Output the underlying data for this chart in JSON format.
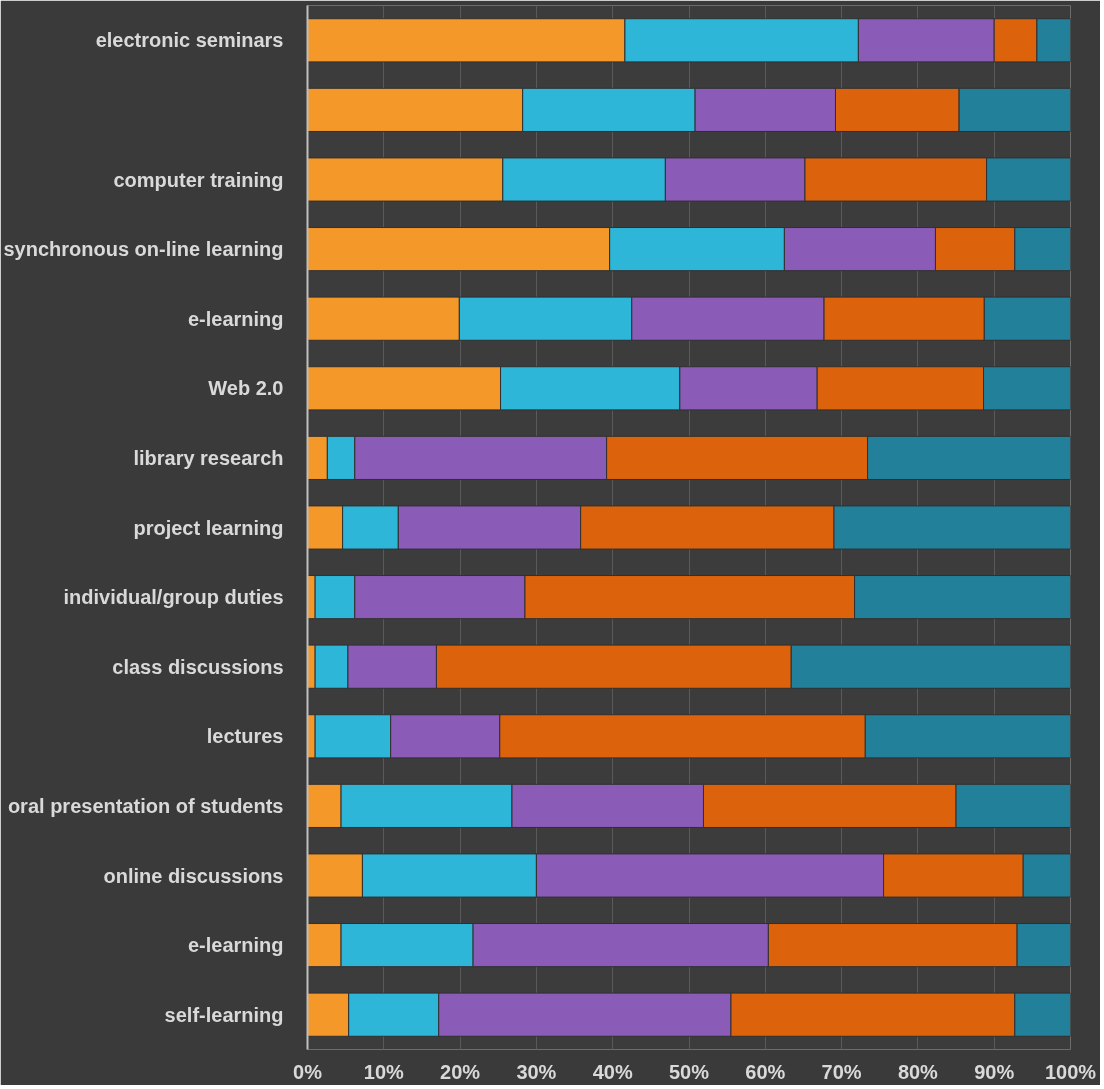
{
  "chart_data": {
    "type": "bar",
    "orientation": "horizontal",
    "stacked": true,
    "categories": [
      "electronic seminars",
      null,
      "computer training",
      "synchronous on-line learning",
      "e-learning",
      "Web 2.0",
      "library research",
      "project learning",
      "individual/group duties",
      "class discussions",
      "lectures",
      "oral presentation of students",
      "online discussions",
      "e-learning",
      "self-learning"
    ],
    "series": [
      {
        "color": "#f5982a",
        "values": [
          41.6,
          28.2,
          25.6,
          39.6,
          19.9,
          25.3,
          2.6,
          4.6,
          1.0,
          1.0,
          1.0,
          4.4,
          7.2,
          4.4,
          5.4
        ]
      },
      {
        "color": "#2db6d8",
        "values": [
          30.6,
          22.6,
          21.3,
          22.9,
          22.6,
          23.5,
          3.6,
          7.3,
          5.2,
          4.3,
          9.9,
          22.4,
          22.8,
          17.3,
          11.8
        ]
      },
      {
        "color": "#8b5bb8",
        "values": [
          17.8,
          18.4,
          18.3,
          19.8,
          25.2,
          18.0,
          33.0,
          23.9,
          22.3,
          11.6,
          14.3,
          25.1,
          45.5,
          38.7,
          38.3
        ]
      },
      {
        "color": "#dc620c",
        "values": [
          5.6,
          16.2,
          23.8,
          10.4,
          21.0,
          21.8,
          34.2,
          33.2,
          43.2,
          46.5,
          47.9,
          33.1,
          18.3,
          32.6,
          37.2
        ]
      },
      {
        "color": "#22809a",
        "values": [
          4.4,
          14.6,
          11.0,
          7.3,
          11.3,
          11.4,
          26.6,
          31.0,
          28.3,
          36.6,
          26.9,
          15.0,
          6.2,
          7.0,
          7.3
        ]
      }
    ],
    "xlim": [
      0,
      100
    ],
    "xticks": [
      {
        "value": 0,
        "label": "0%"
      },
      {
        "value": 10,
        "label": "10%"
      },
      {
        "value": 20,
        "label": "20%"
      },
      {
        "value": 30,
        "label": "30%"
      },
      {
        "value": 40,
        "label": "40%"
      },
      {
        "value": 50,
        "label": "50%"
      },
      {
        "value": 60,
        "label": "60%"
      },
      {
        "value": 70,
        "label": "70%"
      },
      {
        "value": 80,
        "label": "80%"
      },
      {
        "value": 90,
        "label": "90%"
      },
      {
        "value": 100,
        "label": "100%"
      }
    ],
    "grid": "x"
  }
}
